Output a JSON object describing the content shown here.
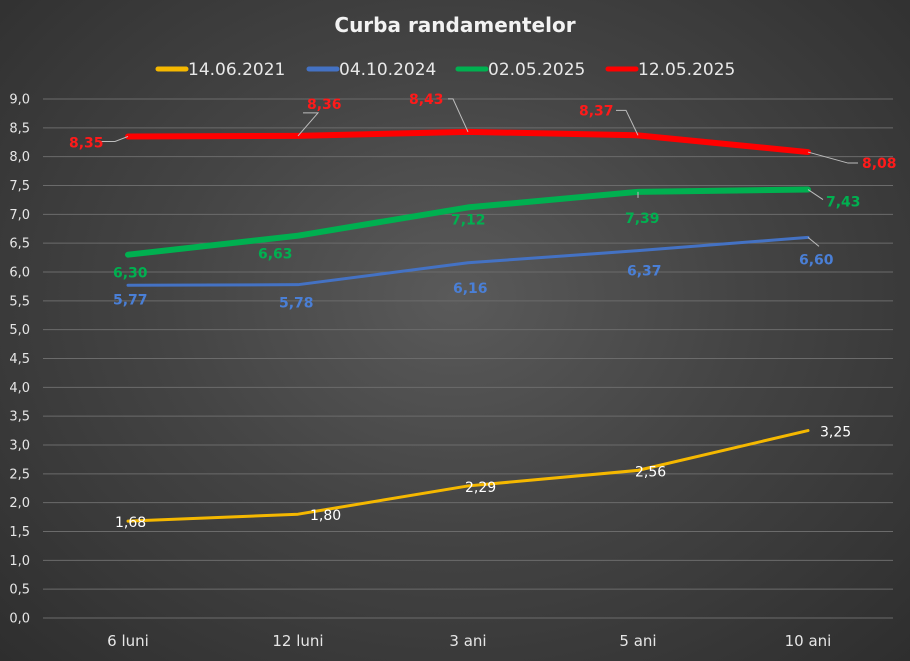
{
  "chart_data": {
    "type": "line",
    "title": "Curba randamentelor",
    "categories": [
      "6 luni",
      "12 luni",
      "3 ani",
      "5 ani",
      "10 ani"
    ],
    "ylim": [
      0,
      9
    ],
    "ytick_step": 0.5,
    "ytick_labels": [
      "0,0",
      "0,5",
      "1,0",
      "1,5",
      "2,0",
      "2,5",
      "3,0",
      "3,5",
      "4,0",
      "4,5",
      "5,0",
      "5,5",
      "6,0",
      "6,5",
      "7,0",
      "7,5",
      "8,0",
      "8,5",
      "9,0"
    ],
    "grid": true,
    "legend_position": "top",
    "series": [
      {
        "name": "14.06.2021",
        "color": "#f5b800",
        "label_color": "#ffffff",
        "values": [
          1.68,
          1.8,
          2.29,
          2.56,
          3.25
        ],
        "labels": [
          "1,68",
          "1,80",
          "2,29",
          "2,56",
          "3,25"
        ]
      },
      {
        "name": "04.10.2024",
        "color": "#4472c4",
        "label_color": "#4a7fd6",
        "values": [
          5.77,
          5.78,
          6.16,
          6.37,
          6.6
        ],
        "labels": [
          "5,77",
          "5,78",
          "6,16",
          "6,37",
          "6,60"
        ]
      },
      {
        "name": "02.05.2025",
        "color": "#00b050",
        "label_color": "#00b050",
        "values": [
          6.3,
          6.63,
          7.12,
          7.39,
          7.43
        ],
        "labels": [
          "6,30",
          "6,63",
          "7,12",
          "7,39",
          "7,43"
        ]
      },
      {
        "name": "12.05.2025",
        "color": "#ff0000",
        "label_color": "#ff1a1a",
        "values": [
          8.35,
          8.36,
          8.43,
          8.37,
          8.08
        ],
        "labels": [
          "8,35",
          "8,36",
          "8,43",
          "8,37",
          "8,08"
        ]
      }
    ]
  }
}
